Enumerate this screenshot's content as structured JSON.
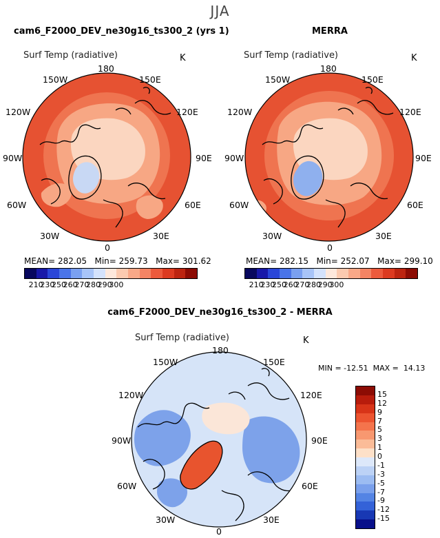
{
  "season": "JJA",
  "panels": [
    {
      "title": "cam6_F2000_DEV_ne30g16_ts300_2 (yrs 1)",
      "variable": "Surf Temp (radiative)",
      "units": "K",
      "stats": {
        "mean_label": "MEAN=",
        "mean": "282.05",
        "min_label": "Min=",
        "min": "259.73",
        "max_label": "Max=",
        "max": "301.62"
      }
    },
    {
      "title": "MERRA",
      "variable": "Surf Temp (radiative)",
      "units": "K",
      "stats": {
        "mean_label": "MEAN=",
        "mean": "282.15",
        "min_label": "Min=",
        "min": "252.07",
        "max_label": "Max=",
        "max": "299.10"
      }
    }
  ],
  "diff_panel": {
    "title": "cam6_F2000_DEV_ne30g16_ts300_2 - MERRA",
    "variable": "Surf Temp (radiative)",
    "units": "K",
    "stats_text": "MIN = -12.51  MAX =  14.13"
  },
  "lon_labels": {
    "top": "180",
    "bottom": "0",
    "ul": "150W",
    "ur": "150E",
    "ml_hi": "120W",
    "mr_hi": "120E",
    "ml": "90W",
    "mr": "90E",
    "ml_lo": "60W",
    "mr_lo": "60E",
    "ll": "30W",
    "lr": "30E"
  },
  "abs_colorbar": {
    "ticks": [
      "210",
      "230",
      "250",
      "260",
      "270",
      "280",
      "290",
      "300"
    ],
    "colors": [
      "#08085e",
      "#1818a8",
      "#2a46d8",
      "#4a74e8",
      "#7aa0f0",
      "#a8c4f8",
      "#d4e2fc",
      "#fde8dc",
      "#fbcab0",
      "#f8a888",
      "#f48464",
      "#ec5a3c",
      "#dc3a20",
      "#bc2410",
      "#8c0c04"
    ]
  },
  "diff_colorbar": {
    "ticks": [
      "15",
      "12",
      "9",
      "7",
      "5",
      "3",
      "1",
      "0",
      "-1",
      "-3",
      "-5",
      "-7",
      "-9",
      "-12",
      "-15"
    ],
    "colors": [
      "#8c0c04",
      "#b81c0c",
      "#d83418",
      "#ec5430",
      "#f4744c",
      "#f89870",
      "#fbbc98",
      "#fde0c8",
      "#dde8fa",
      "#bcd2f6",
      "#9cbcf2",
      "#7aa0ec",
      "#5484e4",
      "#3462d8",
      "#1838b4",
      "#08108a"
    ]
  },
  "map_colors": {
    "warm_outer": "#e65232",
    "warm_mid": "#ef7450",
    "warm_light": "#f7a784",
    "pale": "#fbd6c0",
    "greenland_abs": "#c8d8f4",
    "greenland_merra": "#8fb0ee",
    "diff_base": "#d6e4f8",
    "diff_blue": "#7da2ea",
    "diff_red": "#e8542e",
    "diff_pale": "#fbe6d8"
  }
}
